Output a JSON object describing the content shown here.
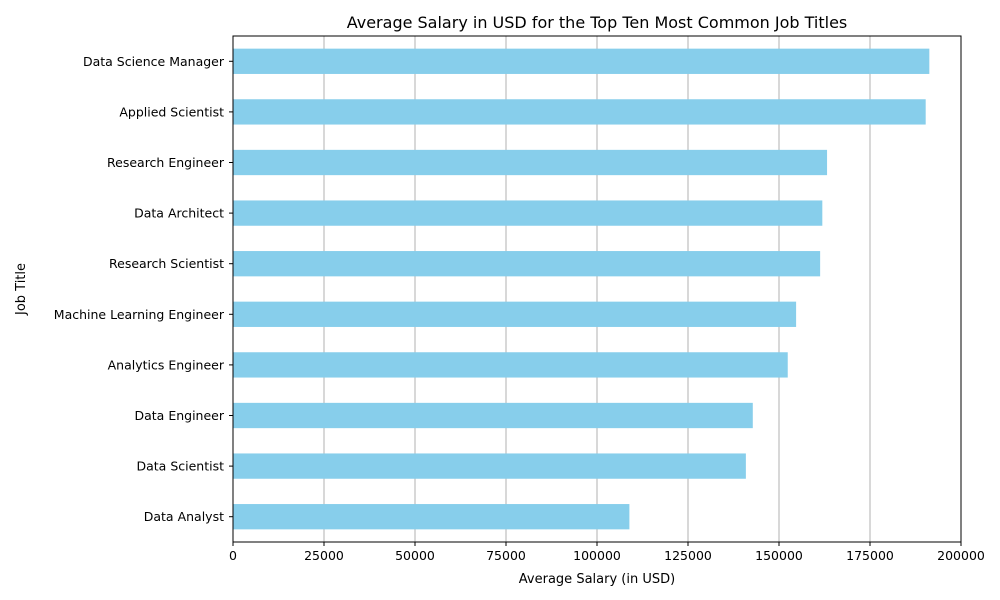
{
  "chart_data": {
    "type": "bar",
    "orientation": "horizontal",
    "title": "Average Salary in USD for the Top Ten Most Common Job Titles",
    "xlabel": "Average Salary (in USD)",
    "ylabel": "Job Title",
    "categories": [
      "Data Science Manager",
      "Applied Scientist",
      "Research Engineer",
      "Data Architect",
      "Research Scientist",
      "Machine Learning Engineer",
      "Analytics Engineer",
      "Data Engineer",
      "Data Scientist",
      "Data Analyst"
    ],
    "values": [
      191300,
      190300,
      163200,
      161900,
      161300,
      154700,
      152400,
      142800,
      140900,
      108900
    ],
    "xlim": [
      0,
      200000
    ],
    "xticks": [
      0,
      25000,
      50000,
      75000,
      100000,
      125000,
      150000,
      175000,
      200000
    ],
    "xtick_labels": [
      "0",
      "25000",
      "50000",
      "75000",
      "100000",
      "125000",
      "150000",
      "175000",
      "200000"
    ],
    "grid": "x",
    "colors": {
      "bar": "#87ceeb",
      "grid": "#b0b0b0",
      "axis": "#000000"
    }
  }
}
